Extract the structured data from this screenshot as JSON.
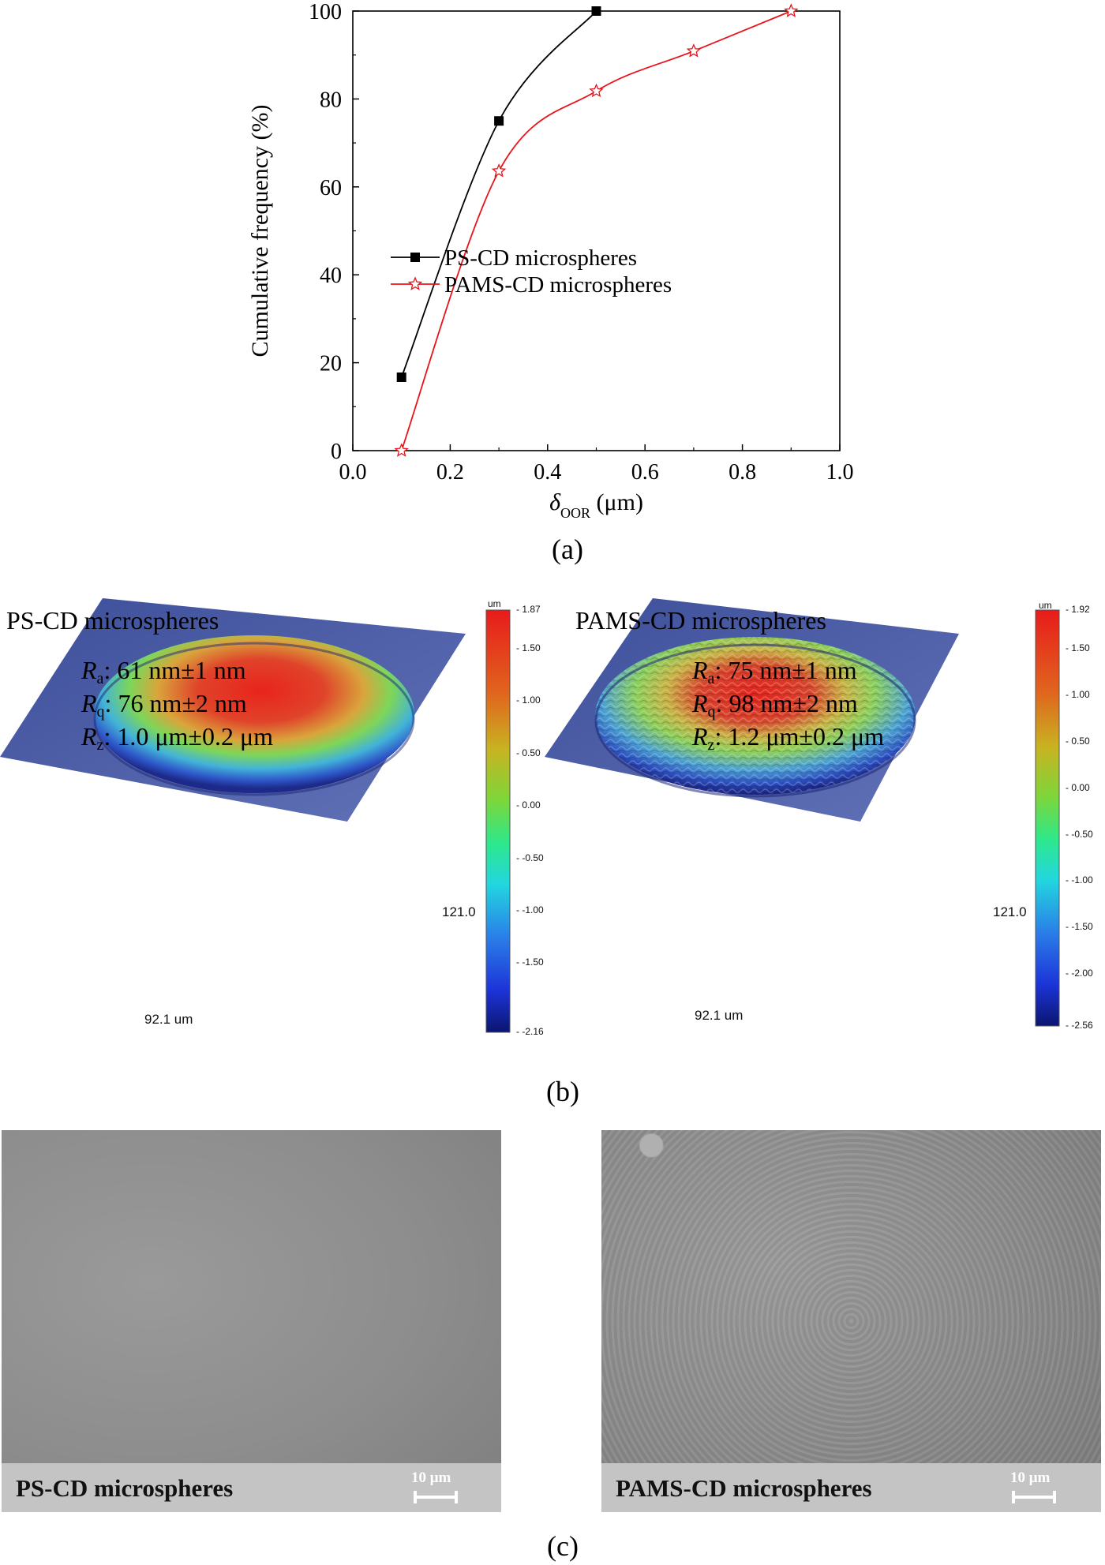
{
  "chart_data": {
    "type": "line",
    "xlabel_symbol": "δ",
    "xlabel_subscript": "OOR",
    "xlabel_unit": "(μm)",
    "ylabel": "Cumulative frequency (%)",
    "xlim": [
      0.0,
      1.0
    ],
    "ylim": [
      0,
      100
    ],
    "x_ticks": [
      "0.0",
      "0.2",
      "0.4",
      "0.6",
      "0.8",
      "1.0"
    ],
    "y_ticks": [
      "0",
      "20",
      "40",
      "60",
      "80",
      "100"
    ],
    "legend_position": "lower-right",
    "series": [
      {
        "name": "PS-CD microspheres",
        "marker": "square",
        "color": "#000000",
        "x": [
          0.1,
          0.3,
          0.5
        ],
        "y": [
          16.7,
          75.0,
          100.0
        ]
      },
      {
        "name": "PAMS-CD microspheres",
        "marker": "star",
        "color": "#e8131b",
        "x": [
          0.1,
          0.3,
          0.5,
          0.7,
          0.9
        ],
        "y": [
          0.0,
          63.6,
          81.8,
          90.9,
          100.0
        ]
      }
    ]
  },
  "captions": {
    "a": "(a)",
    "b": "(b)",
    "c": "(c)"
  },
  "profiles": [
    {
      "title": "PS-CD microspheres",
      "ra": ": 61 nm±1 nm",
      "rq": ": 76 nm±2 nm",
      "rz": ": 1.0 μm±0.2 μm",
      "width_label": "92.1 um",
      "depth_label": "121.0",
      "colorbar_unit": "um",
      "colorbar_ticks": [
        "1.87",
        "1.50",
        "1.00",
        "0.50",
        "0.00",
        "-0.50",
        "-1.00",
        "-1.50",
        "-2.16"
      ]
    },
    {
      "title": "PAMS-CD microspheres",
      "ra": ": 75 nm±1 nm",
      "rq": ": 98 nm±2 nm",
      "rz": ": 1.2 μm±0.2 μm",
      "width_label": "92.1 um",
      "depth_label": "121.0",
      "colorbar_unit": "um",
      "colorbar_ticks": [
        "1.92",
        "1.50",
        "1.00",
        "0.50",
        "0.00",
        "-0.50",
        "-1.00",
        "-1.50",
        "-2.00",
        "-2.56"
      ]
    }
  ],
  "metric_symbols": {
    "ra": "R",
    "ra_sub": "a",
    "rq": "R",
    "rq_sub": "q",
    "rz": "R",
    "rz_sub": "z"
  },
  "sem": [
    {
      "label": "PS-CD microspheres",
      "scale": "10 μm"
    },
    {
      "label": "PAMS-CD microspheres",
      "scale": "10 μm"
    }
  ]
}
